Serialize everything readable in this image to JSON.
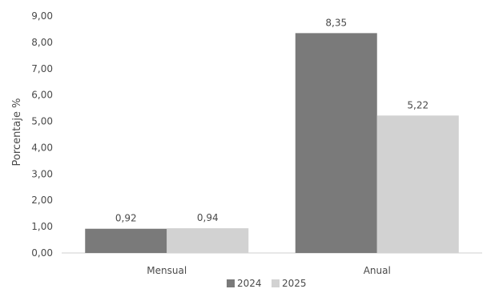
{
  "chart_data": {
    "type": "bar",
    "categories": [
      "Mensual",
      "Anual"
    ],
    "series": [
      {
        "name": "2024",
        "values": [
          0.92,
          8.35
        ],
        "labels": [
          "0,92",
          "8,35"
        ],
        "color": "#7a7a7a"
      },
      {
        "name": "2025",
        "values": [
          0.94,
          5.22
        ],
        "labels": [
          "0,94",
          "5,22"
        ],
        "color": "#d2d2d2"
      }
    ],
    "ylabel": "Porcentaje %",
    "xlabel": "",
    "ylim": [
      0,
      9
    ],
    "yticks": [
      0,
      1,
      2,
      3,
      4,
      5,
      6,
      7,
      8,
      9
    ],
    "ytick_labels": [
      "0,00",
      "1,00",
      "2,00",
      "3,00",
      "4,00",
      "5,00",
      "6,00",
      "7,00",
      "8,00",
      "9,00"
    ],
    "grid": false,
    "legend_position": "bottom"
  }
}
